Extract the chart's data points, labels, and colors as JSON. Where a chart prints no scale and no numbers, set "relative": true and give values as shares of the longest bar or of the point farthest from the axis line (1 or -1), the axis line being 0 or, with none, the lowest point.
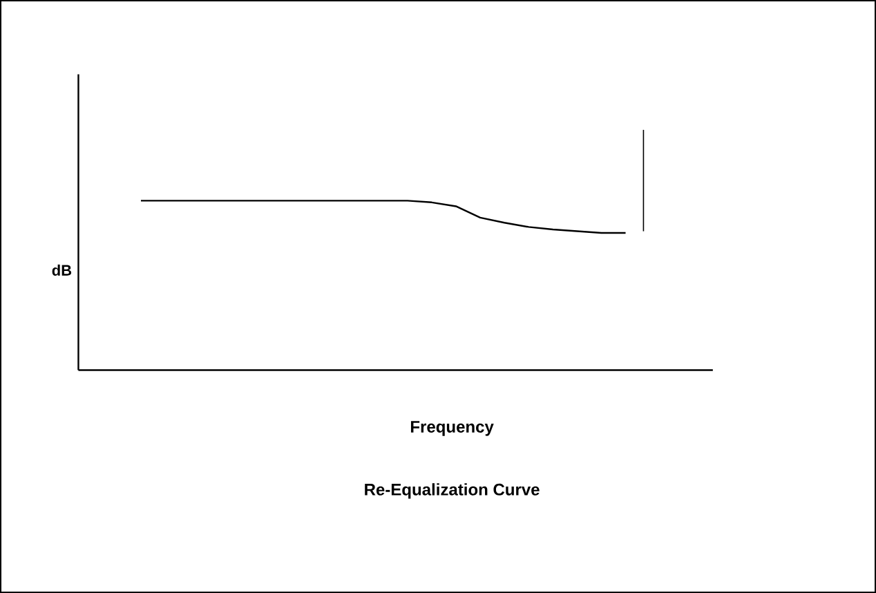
{
  "chart_data": {
    "type": "line",
    "title": "Re-Equalization Curve",
    "xlabel": "Frequency",
    "ylabel": "dB",
    "relative": true,
    "color": "#000000",
    "categories": [
      null,
      null,
      null,
      null,
      null,
      null,
      null,
      null,
      null,
      null,
      null,
      null,
      null,
      null,
      null,
      null,
      null,
      null,
      null,
      null,
      null
    ],
    "values": [
      1.0,
      1.0,
      1.0,
      1.0,
      1.0,
      1.0,
      1.0,
      1.0,
      1.0,
      1.0,
      1.0,
      1.0,
      0.99,
      0.967,
      0.9,
      0.87,
      0.845,
      0.83,
      0.82,
      0.81,
      0.81
    ],
    "marker": "none",
    "line_style": "solid"
  }
}
